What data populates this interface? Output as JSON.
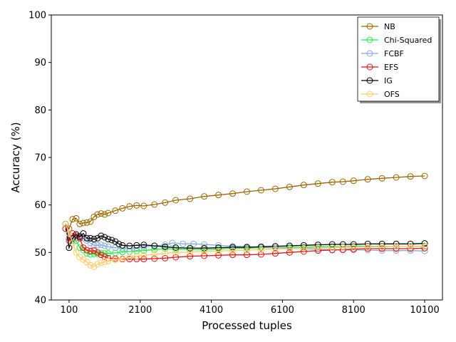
{
  "chart_data": {
    "type": "line",
    "xlabel": "Processed tuples",
    "ylabel": "Accuracy (%)",
    "xlim": [
      -400,
      10600
    ],
    "ylim": [
      40,
      100
    ],
    "xticks": [
      100,
      2100,
      4100,
      6100,
      8100,
      10100
    ],
    "yticks": [
      40,
      50,
      60,
      70,
      80,
      90,
      100
    ],
    "grid": false,
    "legend_position": "top-right",
    "marker": "open-circle",
    "series": [
      {
        "name": "NB",
        "color": "#996600",
        "points": [
          [
            0,
            56
          ],
          [
            100,
            55
          ],
          [
            200,
            57
          ],
          [
            300,
            57.2
          ],
          [
            400,
            56
          ],
          [
            500,
            56.2
          ],
          [
            600,
            56.3
          ],
          [
            700,
            56.5
          ],
          [
            800,
            57.5
          ],
          [
            900,
            58
          ],
          [
            1000,
            58.2
          ],
          [
            1100,
            58
          ],
          [
            1200,
            58.3
          ],
          [
            1400,
            58.8
          ],
          [
            1600,
            59.3
          ],
          [
            1800,
            59.7
          ],
          [
            2000,
            59.9
          ],
          [
            2200,
            59.8
          ],
          [
            2500,
            60.1
          ],
          [
            2800,
            60.5
          ],
          [
            3100,
            61
          ],
          [
            3500,
            61.3
          ],
          [
            3900,
            61.8
          ],
          [
            4300,
            62.1
          ],
          [
            4700,
            62.4
          ],
          [
            5100,
            62.8
          ],
          [
            5500,
            63.1
          ],
          [
            5900,
            63.4
          ],
          [
            6300,
            63.8
          ],
          [
            6700,
            64.2
          ],
          [
            7100,
            64.5
          ],
          [
            7500,
            64.8
          ],
          [
            7800,
            64.9
          ],
          [
            8100,
            65.1
          ],
          [
            8500,
            65.4
          ],
          [
            8900,
            65.6
          ],
          [
            9300,
            65.8
          ],
          [
            9700,
            66
          ],
          [
            10100,
            66.1
          ]
        ]
      },
      {
        "name": "Chi-Squared",
        "color": "#22ee44",
        "points": [
          [
            0,
            55
          ],
          [
            100,
            53
          ],
          [
            200,
            52
          ],
          [
            300,
            52.5
          ],
          [
            400,
            51
          ],
          [
            500,
            50.5
          ],
          [
            600,
            49.8
          ],
          [
            700,
            49.6
          ],
          [
            800,
            49.7
          ],
          [
            900,
            49.7
          ],
          [
            1000,
            49.9
          ],
          [
            1100,
            49.8
          ],
          [
            1200,
            49.8
          ],
          [
            1400,
            49.9
          ],
          [
            1600,
            50.1
          ],
          [
            1800,
            50.2
          ],
          [
            2000,
            50.3
          ],
          [
            2200,
            50.4
          ],
          [
            2500,
            50.6
          ],
          [
            2800,
            50.8
          ],
          [
            3100,
            50.7
          ],
          [
            3500,
            50.6
          ],
          [
            3900,
            50.6
          ],
          [
            4300,
            50.7
          ],
          [
            4700,
            50.9
          ],
          [
            5100,
            50.9
          ],
          [
            5500,
            51
          ],
          [
            5900,
            51
          ],
          [
            6300,
            51.1
          ],
          [
            6700,
            51.1
          ],
          [
            7100,
            51.2
          ],
          [
            7500,
            51.2
          ],
          [
            7800,
            51.2
          ],
          [
            8100,
            51.3
          ],
          [
            8500,
            51.3
          ],
          [
            8900,
            51.3
          ],
          [
            9300,
            51.3
          ],
          [
            9700,
            51.3
          ],
          [
            10100,
            51.3
          ]
        ]
      },
      {
        "name": "FCBF",
        "color": "#88aadd",
        "points": [
          [
            0,
            56
          ],
          [
            100,
            53
          ],
          [
            200,
            52.5
          ],
          [
            300,
            53
          ],
          [
            400,
            53.5
          ],
          [
            500,
            53
          ],
          [
            600,
            52.5
          ],
          [
            700,
            52
          ],
          [
            800,
            51.5
          ],
          [
            900,
            51.5
          ],
          [
            1000,
            51.6
          ],
          [
            1100,
            51.4
          ],
          [
            1200,
            51.2
          ],
          [
            1400,
            51
          ],
          [
            1600,
            50.9
          ],
          [
            1800,
            50.8
          ],
          [
            2000,
            51
          ],
          [
            2200,
            51.2
          ],
          [
            2500,
            51.4
          ],
          [
            2800,
            51.6
          ],
          [
            3000,
            52
          ],
          [
            3300,
            51.8
          ],
          [
            3600,
            51.8
          ],
          [
            3900,
            51.7
          ],
          [
            4300,
            51.5
          ],
          [
            4700,
            51.3
          ],
          [
            5100,
            51.2
          ],
          [
            5500,
            51.1
          ],
          [
            5900,
            51
          ],
          [
            6300,
            50.9
          ],
          [
            6700,
            50.8
          ],
          [
            7100,
            50.7
          ],
          [
            7500,
            50.6
          ],
          [
            7800,
            50.5
          ],
          [
            8100,
            50.5
          ],
          [
            8500,
            50.5
          ],
          [
            8900,
            50.4
          ],
          [
            9300,
            50.4
          ],
          [
            9700,
            50.4
          ],
          [
            10100,
            50.3
          ]
        ]
      },
      {
        "name": "EFS",
        "color": "#ee1111",
        "points": [
          [
            0,
            55
          ],
          [
            100,
            52.5
          ],
          [
            200,
            54
          ],
          [
            300,
            53.5
          ],
          [
            400,
            53
          ],
          [
            500,
            51
          ],
          [
            600,
            50.5
          ],
          [
            700,
            50.3
          ],
          [
            800,
            50.4
          ],
          [
            900,
            50
          ],
          [
            1000,
            49.5
          ],
          [
            1100,
            49.1
          ],
          [
            1200,
            48.8
          ],
          [
            1400,
            48.7
          ],
          [
            1600,
            48.6
          ],
          [
            1800,
            48.6
          ],
          [
            2000,
            48.6
          ],
          [
            2200,
            48.6
          ],
          [
            2500,
            48.7
          ],
          [
            2800,
            48.8
          ],
          [
            3100,
            49
          ],
          [
            3500,
            49.2
          ],
          [
            3900,
            49.3
          ],
          [
            4300,
            49.4
          ],
          [
            4700,
            49.5
          ],
          [
            5100,
            49.5
          ],
          [
            5500,
            49.6
          ],
          [
            5900,
            49.8
          ],
          [
            6300,
            50
          ],
          [
            6700,
            50.2
          ],
          [
            7100,
            50.4
          ],
          [
            7500,
            50.5
          ],
          [
            7800,
            50.6
          ],
          [
            8100,
            50.7
          ],
          [
            8500,
            50.8
          ],
          [
            8900,
            50.8
          ],
          [
            9300,
            50.8
          ],
          [
            9700,
            50.8
          ],
          [
            10100,
            50.9
          ]
        ]
      },
      {
        "name": "IG",
        "color": "#000000",
        "points": [
          [
            0,
            56
          ],
          [
            100,
            51
          ],
          [
            200,
            53
          ],
          [
            300,
            53.8
          ],
          [
            400,
            53.3
          ],
          [
            500,
            54
          ],
          [
            600,
            53
          ],
          [
            700,
            53
          ],
          [
            800,
            52.8
          ],
          [
            900,
            53
          ],
          [
            1000,
            53.5
          ],
          [
            1100,
            53.2
          ],
          [
            1200,
            52.8
          ],
          [
            1300,
            52.6
          ],
          [
            1400,
            52.3
          ],
          [
            1500,
            51.8
          ],
          [
            1600,
            51.5
          ],
          [
            1800,
            51.4
          ],
          [
            2000,
            51.5
          ],
          [
            2200,
            51.6
          ],
          [
            2500,
            51.4
          ],
          [
            2800,
            51.2
          ],
          [
            3100,
            51
          ],
          [
            3500,
            50.9
          ],
          [
            3900,
            50.9
          ],
          [
            4300,
            51
          ],
          [
            4700,
            51.1
          ],
          [
            5100,
            51.1
          ],
          [
            5500,
            51.2
          ],
          [
            5900,
            51.3
          ],
          [
            6300,
            51.4
          ],
          [
            6700,
            51.5
          ],
          [
            7100,
            51.6
          ],
          [
            7500,
            51.7
          ],
          [
            7800,
            51.7
          ],
          [
            8100,
            51.7
          ],
          [
            8500,
            51.8
          ],
          [
            8900,
            51.8
          ],
          [
            9300,
            51.8
          ],
          [
            9700,
            51.8
          ],
          [
            10100,
            51.9
          ]
        ]
      },
      {
        "name": "OFS",
        "color": "#ffcc66",
        "points": [
          [
            0,
            56
          ],
          [
            100,
            54
          ],
          [
            200,
            52
          ],
          [
            300,
            50
          ],
          [
            400,
            49
          ],
          [
            500,
            48.5
          ],
          [
            600,
            48
          ],
          [
            700,
            47.3
          ],
          [
            800,
            47
          ],
          [
            900,
            47.5
          ],
          [
            1000,
            47.8
          ],
          [
            1100,
            48
          ],
          [
            1200,
            48.2
          ],
          [
            1400,
            48.4
          ],
          [
            1600,
            48.7
          ],
          [
            1800,
            49
          ],
          [
            2000,
            49.2
          ],
          [
            2200,
            49.4
          ],
          [
            2500,
            49.6
          ],
          [
            2800,
            49.8
          ],
          [
            3100,
            50
          ],
          [
            3500,
            50.1
          ],
          [
            3900,
            50.2
          ],
          [
            4300,
            50.3
          ],
          [
            4700,
            50.4
          ],
          [
            5100,
            50.5
          ],
          [
            5500,
            50.6
          ],
          [
            5900,
            50.7
          ],
          [
            6300,
            50.8
          ],
          [
            6700,
            50.9
          ],
          [
            7100,
            51
          ],
          [
            7500,
            51
          ],
          [
            7800,
            51.1
          ],
          [
            8100,
            51.1
          ],
          [
            8500,
            51.2
          ],
          [
            8900,
            51.2
          ],
          [
            9300,
            51.3
          ],
          [
            9700,
            51.3
          ],
          [
            10100,
            51.4
          ]
        ]
      }
    ]
  }
}
